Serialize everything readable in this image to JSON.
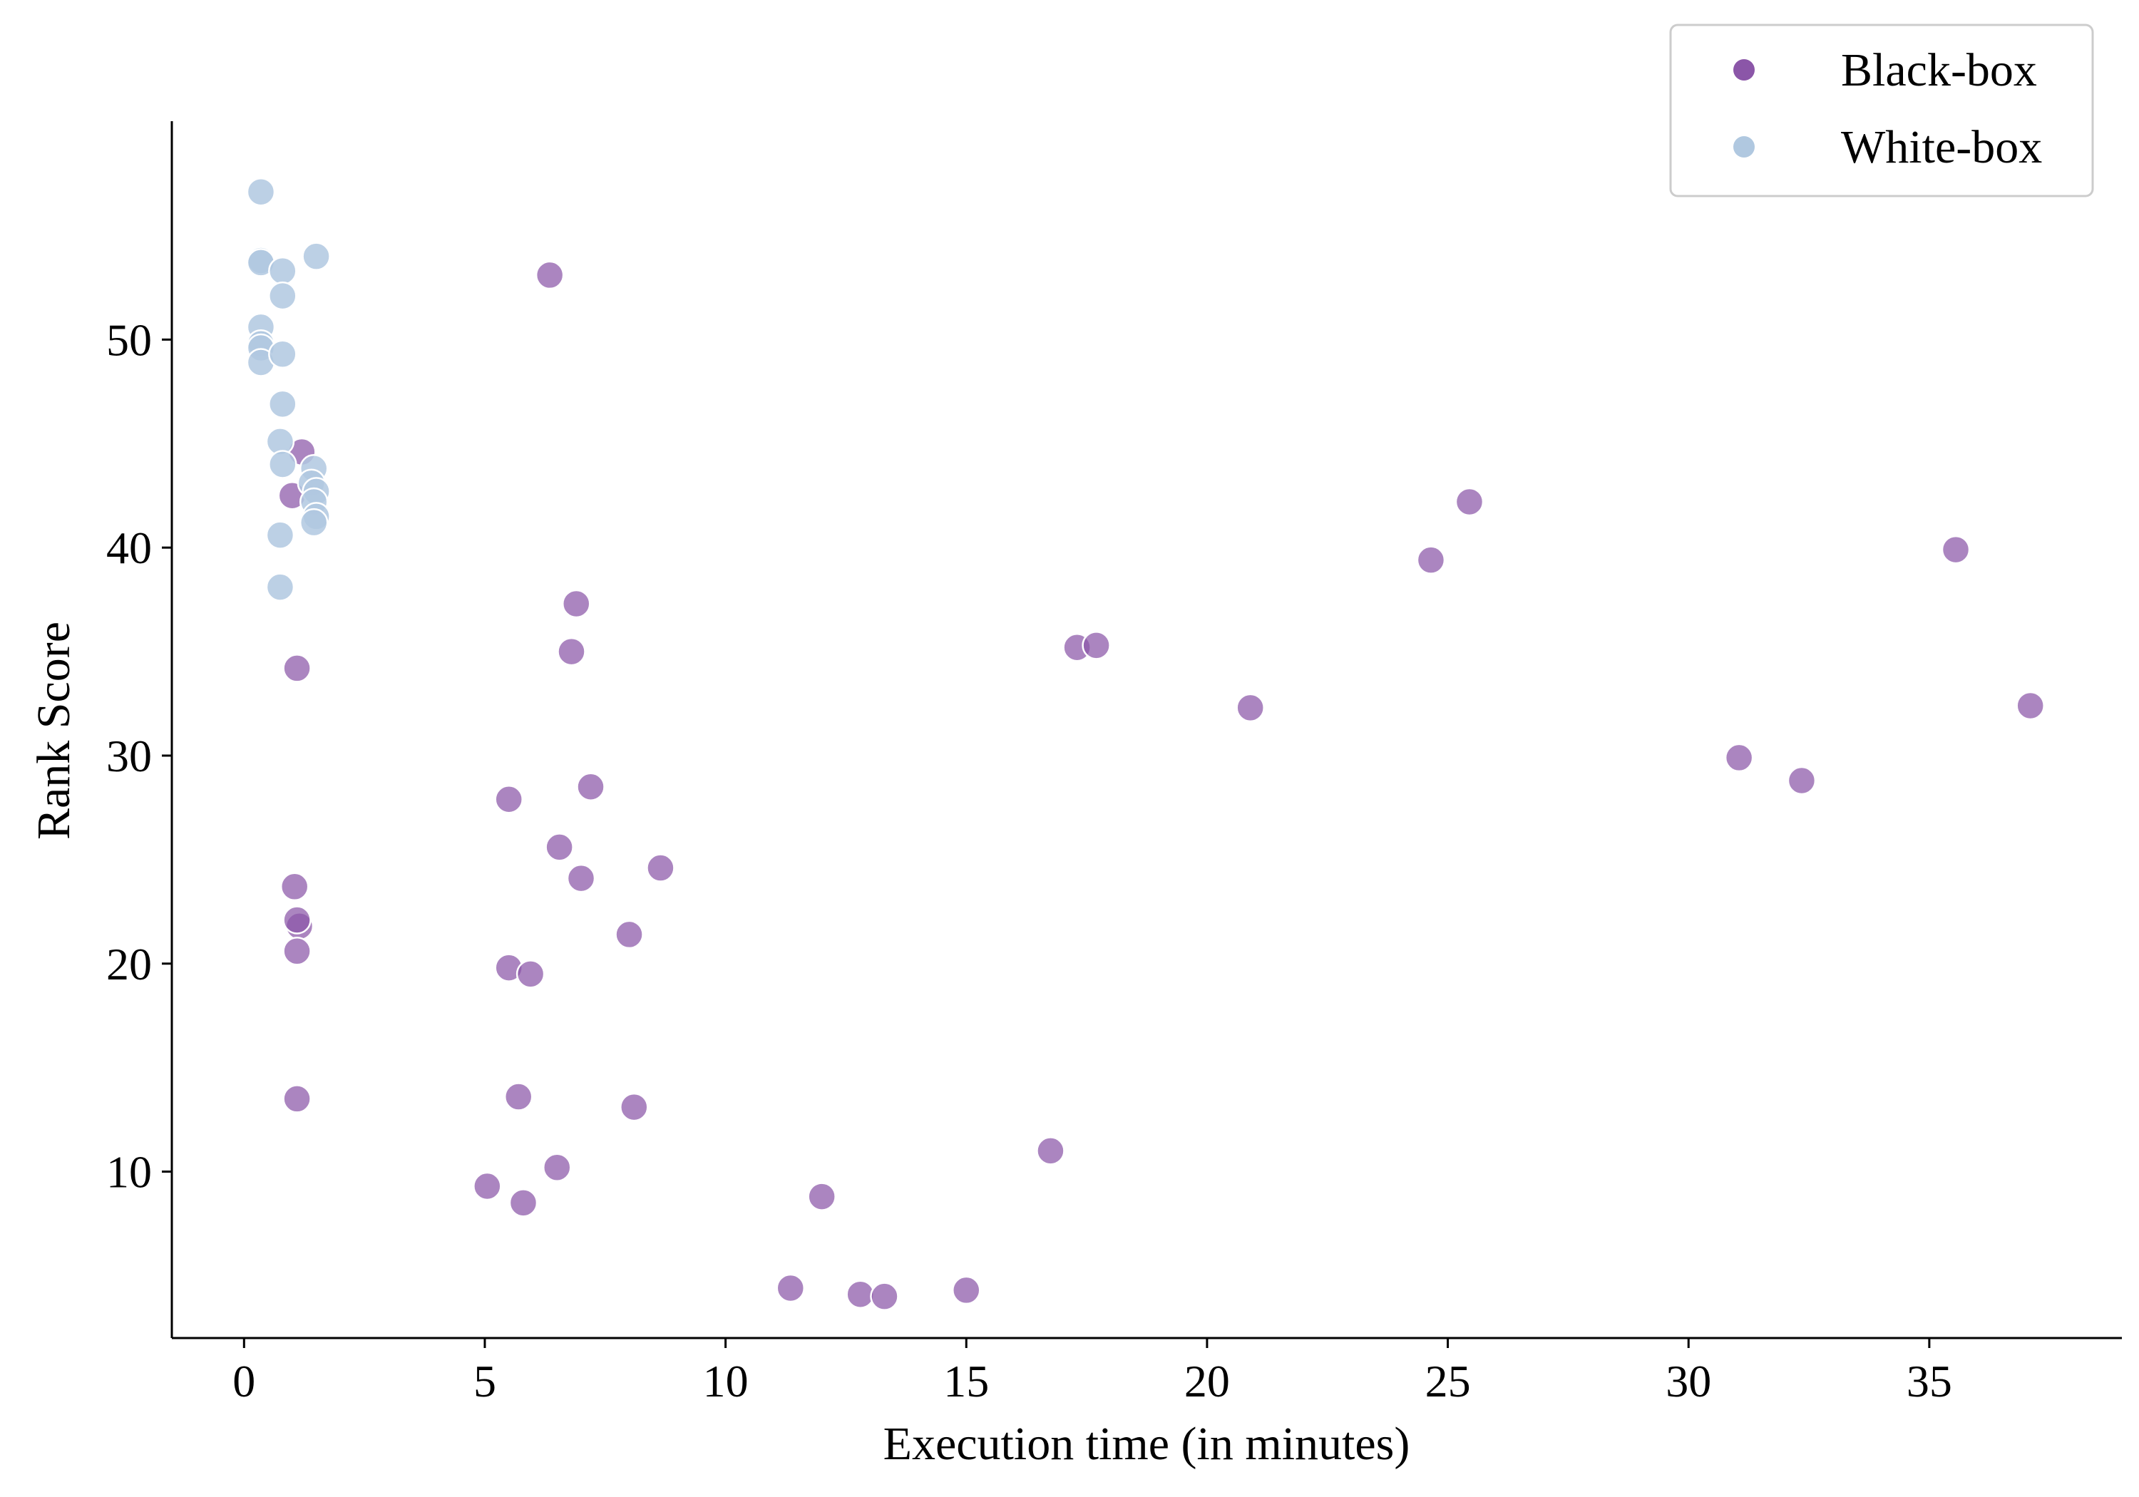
{
  "chart_data": {
    "type": "scatter",
    "xlabel": "Execution time (in minutes)",
    "ylabel": "Rank Score",
    "xlim": [
      -1.5,
      39
    ],
    "ylim": [
      2,
      60.5
    ],
    "xticks": [
      0,
      5,
      10,
      15,
      20,
      25,
      30,
      35
    ],
    "yticks": [
      10,
      20,
      30,
      40,
      50
    ],
    "grid": false,
    "legend_position": "top-right",
    "series": [
      {
        "name": "Black-box",
        "color": "#8b56a8",
        "points": [
          [
            1.2,
            44.6
          ],
          [
            1.0,
            42.5
          ],
          [
            1.1,
            34.2
          ],
          [
            1.05,
            23.7
          ],
          [
            1.15,
            21.8
          ],
          [
            1.1,
            22.1
          ],
          [
            1.1,
            20.6
          ],
          [
            1.1,
            13.5
          ],
          [
            6.35,
            53.1
          ],
          [
            6.9,
            37.3
          ],
          [
            6.8,
            35.0
          ],
          [
            7.2,
            28.5
          ],
          [
            5.5,
            27.9
          ],
          [
            6.55,
            25.6
          ],
          [
            7.0,
            24.1
          ],
          [
            8.65,
            24.6
          ],
          [
            8.0,
            21.4
          ],
          [
            5.5,
            19.8
          ],
          [
            5.95,
            19.5
          ],
          [
            5.7,
            13.6
          ],
          [
            8.1,
            13.1
          ],
          [
            6.5,
            10.2
          ],
          [
            5.05,
            9.3
          ],
          [
            5.8,
            8.5
          ],
          [
            12.0,
            8.8
          ],
          [
            11.35,
            4.4
          ],
          [
            12.8,
            4.1
          ],
          [
            13.3,
            4.0
          ],
          [
            15.0,
            4.3
          ],
          [
            16.75,
            11.0
          ],
          [
            17.3,
            35.2
          ],
          [
            17.7,
            35.3
          ],
          [
            20.9,
            32.3
          ],
          [
            24.65,
            39.4
          ],
          [
            25.45,
            42.2
          ],
          [
            31.05,
            29.9
          ],
          [
            32.35,
            28.8
          ],
          [
            35.55,
            39.9
          ],
          [
            37.1,
            32.4
          ]
        ]
      },
      {
        "name": "White-box",
        "color": "#b0c8e0",
        "points": [
          [
            0.35,
            57.1
          ],
          [
            0.35,
            53.8
          ],
          [
            0.35,
            53.7
          ],
          [
            0.8,
            53.3
          ],
          [
            1.5,
            54.0
          ],
          [
            0.8,
            52.1
          ],
          [
            0.35,
            50.6
          ],
          [
            0.35,
            49.8
          ],
          [
            0.35,
            49.6
          ],
          [
            0.35,
            48.9
          ],
          [
            0.8,
            49.3
          ],
          [
            0.8,
            46.9
          ],
          [
            0.75,
            45.1
          ],
          [
            0.8,
            44.0
          ],
          [
            1.45,
            43.8
          ],
          [
            1.4,
            43.1
          ],
          [
            1.5,
            42.7
          ],
          [
            1.45,
            42.2
          ],
          [
            1.5,
            41.5
          ],
          [
            1.45,
            41.2
          ],
          [
            0.75,
            40.6
          ],
          [
            0.75,
            38.1
          ]
        ]
      }
    ]
  }
}
